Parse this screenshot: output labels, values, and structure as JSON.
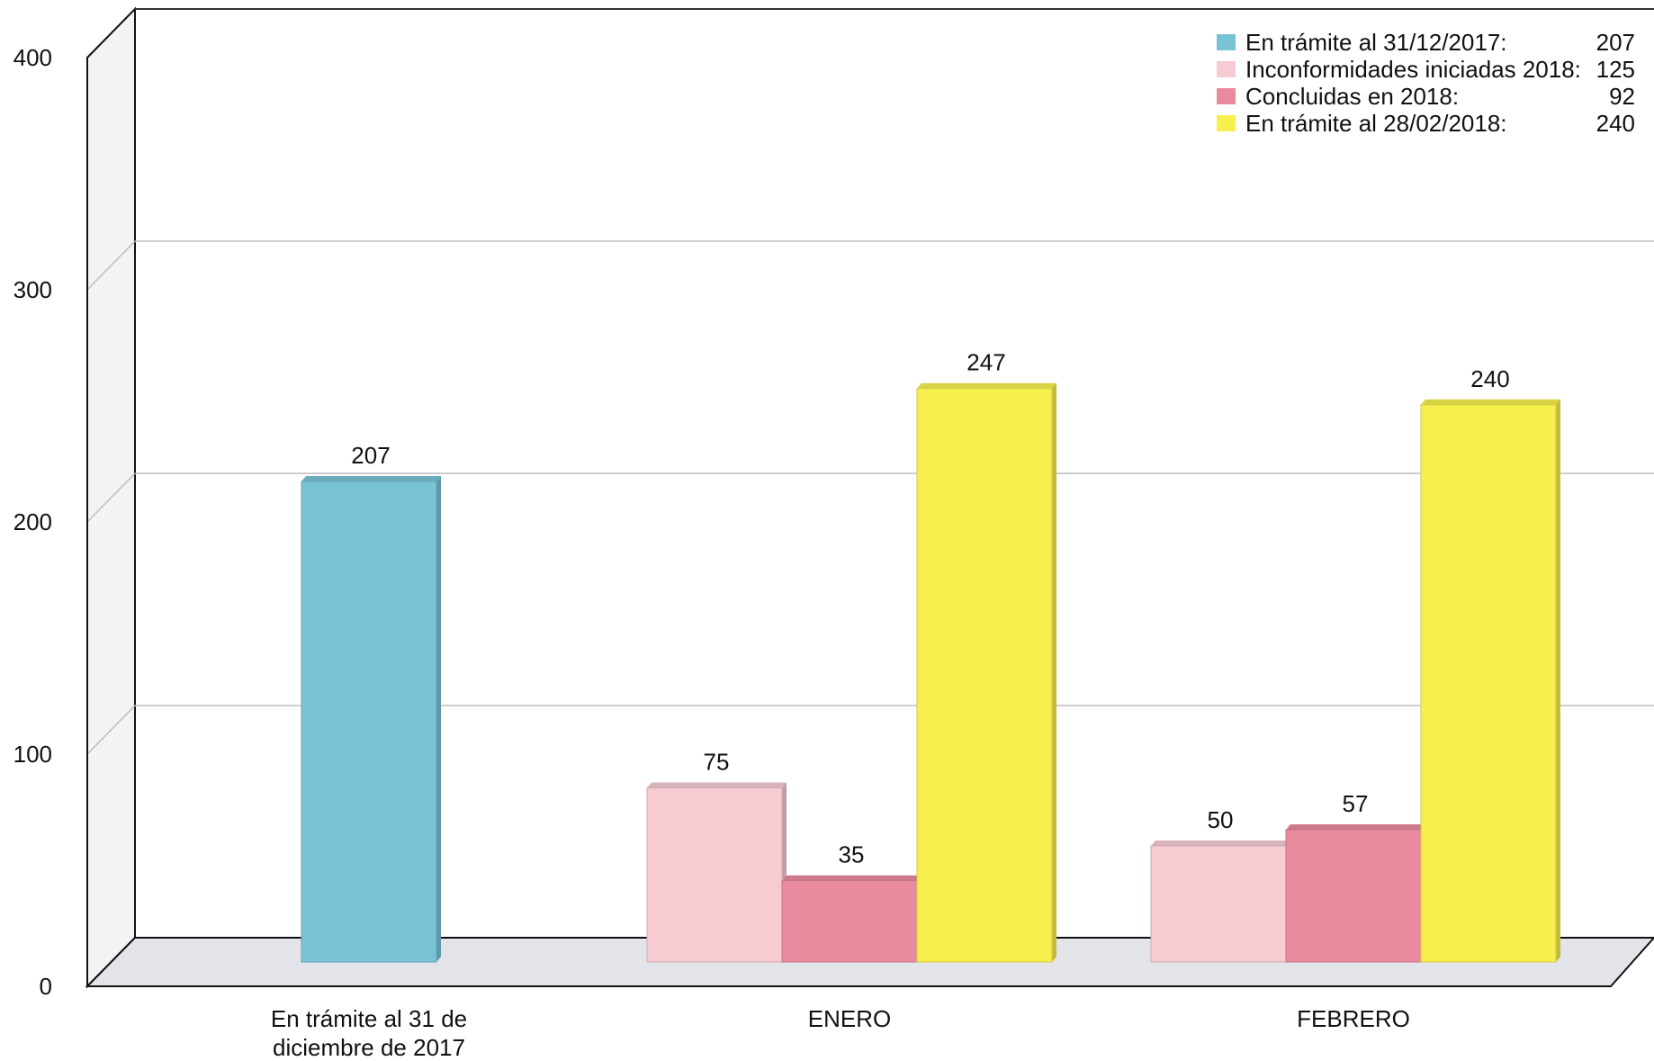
{
  "chart_data": {
    "type": "bar",
    "categories": [
      "En trámite al 31 de diciembre de 2017",
      "ENERO",
      "FEBRERO"
    ],
    "category_lines": [
      [
        "En trámite al 31 de",
        "diciembre de 2017"
      ],
      [
        "ENERO"
      ],
      [
        "FEBRERO"
      ]
    ],
    "series": [
      {
        "name": "En trámite al 31/12/2017:",
        "color": "#79c3d6",
        "values": [
          207,
          null,
          null
        ]
      },
      {
        "name": "Inconformidades iniciadas 2018:",
        "color": "#f6cbd2",
        "values": [
          null,
          75,
          50
        ]
      },
      {
        "name": "Concluidas en 2018:",
        "color": "#e98a9f",
        "values": [
          null,
          35,
          57
        ]
      },
      {
        "name": "En trámite al 28/02/2018:",
        "color": "#f6ef4e",
        "values": [
          null,
          247,
          240
        ]
      }
    ],
    "legend": {
      "position": "top-right",
      "entries": [
        {
          "label": "En trámite al 31/12/2017:",
          "value": "207",
          "color": "#79c3d6"
        },
        {
          "label": "Inconformidades iniciadas 2018:",
          "value": "125",
          "color": "#f6cbd2"
        },
        {
          "label": "Concluidas en 2018:",
          "value": "92",
          "color": "#e98a9f"
        },
        {
          "label": "En trámite al 28/02/2018:",
          "value": "240",
          "color": "#f6ef4e"
        }
      ]
    },
    "yticks": [
      0,
      100,
      200,
      300,
      400
    ],
    "ylim": [
      0,
      400
    ],
    "grid": true
  }
}
